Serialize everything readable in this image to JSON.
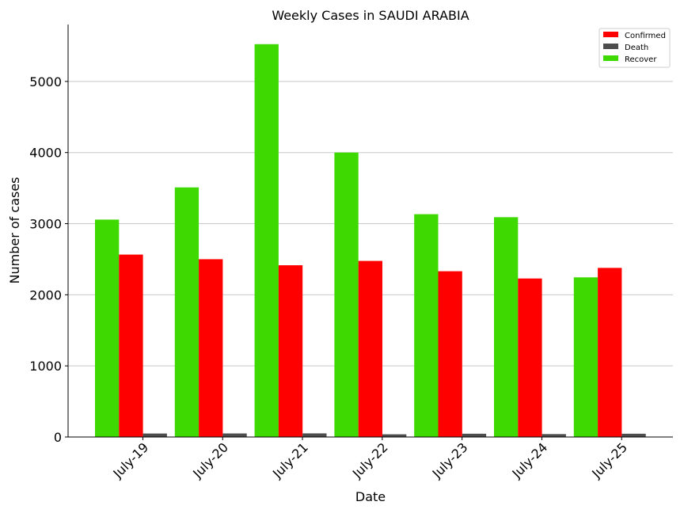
{
  "chart_data": {
    "type": "bar",
    "title": "Weekly Cases in SAUDI ARABIA",
    "xlabel": "Date",
    "ylabel": "Number of cases",
    "categories": [
      "July-19",
      "July-20",
      "July-21",
      "July-22",
      "July-23",
      "July-24",
      "July-25"
    ],
    "series": [
      {
        "name": "Recover",
        "color": "#3dd900",
        "values": [
          3057,
          3510,
          5524,
          4000,
          3133,
          3091,
          2245
        ]
      },
      {
        "name": "Confirmed",
        "color": "#ff0000",
        "values": [
          2565,
          2500,
          2415,
          2476,
          2331,
          2229,
          2378
        ]
      },
      {
        "name": "Death",
        "color": "#4d4d4d",
        "values": [
          49,
          50,
          51,
          38,
          46,
          41,
          46
        ]
      }
    ],
    "legend_order": [
      "Confirmed",
      "Death",
      "Recover"
    ],
    "yticks": [
      0,
      1000,
      2000,
      3000,
      4000,
      5000
    ],
    "ylim": [
      0,
      5800
    ],
    "grid": "horizontal",
    "legend_position": "top-right"
  }
}
